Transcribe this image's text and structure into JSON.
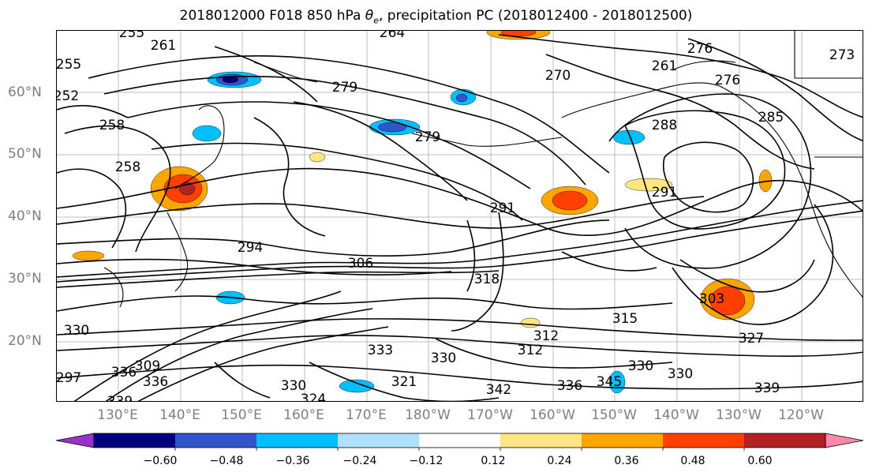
{
  "title_main": "2018012000 F018 850 hPa ",
  "title_theta": "θ",
  "title_sub": "e",
  "title_rest": ", precipitation PC (2018012400 - 2018012500)",
  "lat_labels": [
    "60°N",
    "50°N",
    "40°N",
    "30°N",
    "20°N"
  ],
  "lon_labels": [
    "130°E",
    "140°E",
    "150°E",
    "160°E",
    "170°E",
    "180°W",
    "170°W",
    "160°W",
    "150°W",
    "140°W",
    "130°W",
    "120°W"
  ],
  "colorbar": {
    "ticks": [
      "−0.60",
      "−0.48",
      "−0.36",
      "−0.24",
      "−0.12",
      "0.12",
      "0.24",
      "0.36",
      "0.48",
      "0.60"
    ],
    "colors": [
      "#9932CC",
      "#000080",
      "#3355CC",
      "#00BFFF",
      "#B0E0FF",
      "#FFFFFF",
      "#FFE680",
      "#FFA500",
      "#FF4000",
      "#B22222",
      "#FF88AA"
    ],
    "levels": [
      -0.72,
      -0.6,
      -0.48,
      -0.36,
      -0.24,
      -0.12,
      0.12,
      0.24,
      0.36,
      0.48,
      0.6,
      0.72
    ]
  },
  "contour_labels": [
    "255",
    "255",
    "264",
    "252",
    "261",
    "279",
    "270",
    "276",
    "273",
    "258",
    "261",
    "279",
    "276",
    "285",
    "288",
    "258",
    "291",
    "294",
    "306",
    "318",
    "303",
    "315",
    "312",
    "330",
    "327",
    "330",
    "333",
    "330",
    "336",
    "339",
    "330",
    "336",
    "339",
    "324",
    "342",
    "345",
    "321",
    "336",
    "330",
    "309",
    "312",
    "291",
    "297"
  ]
}
